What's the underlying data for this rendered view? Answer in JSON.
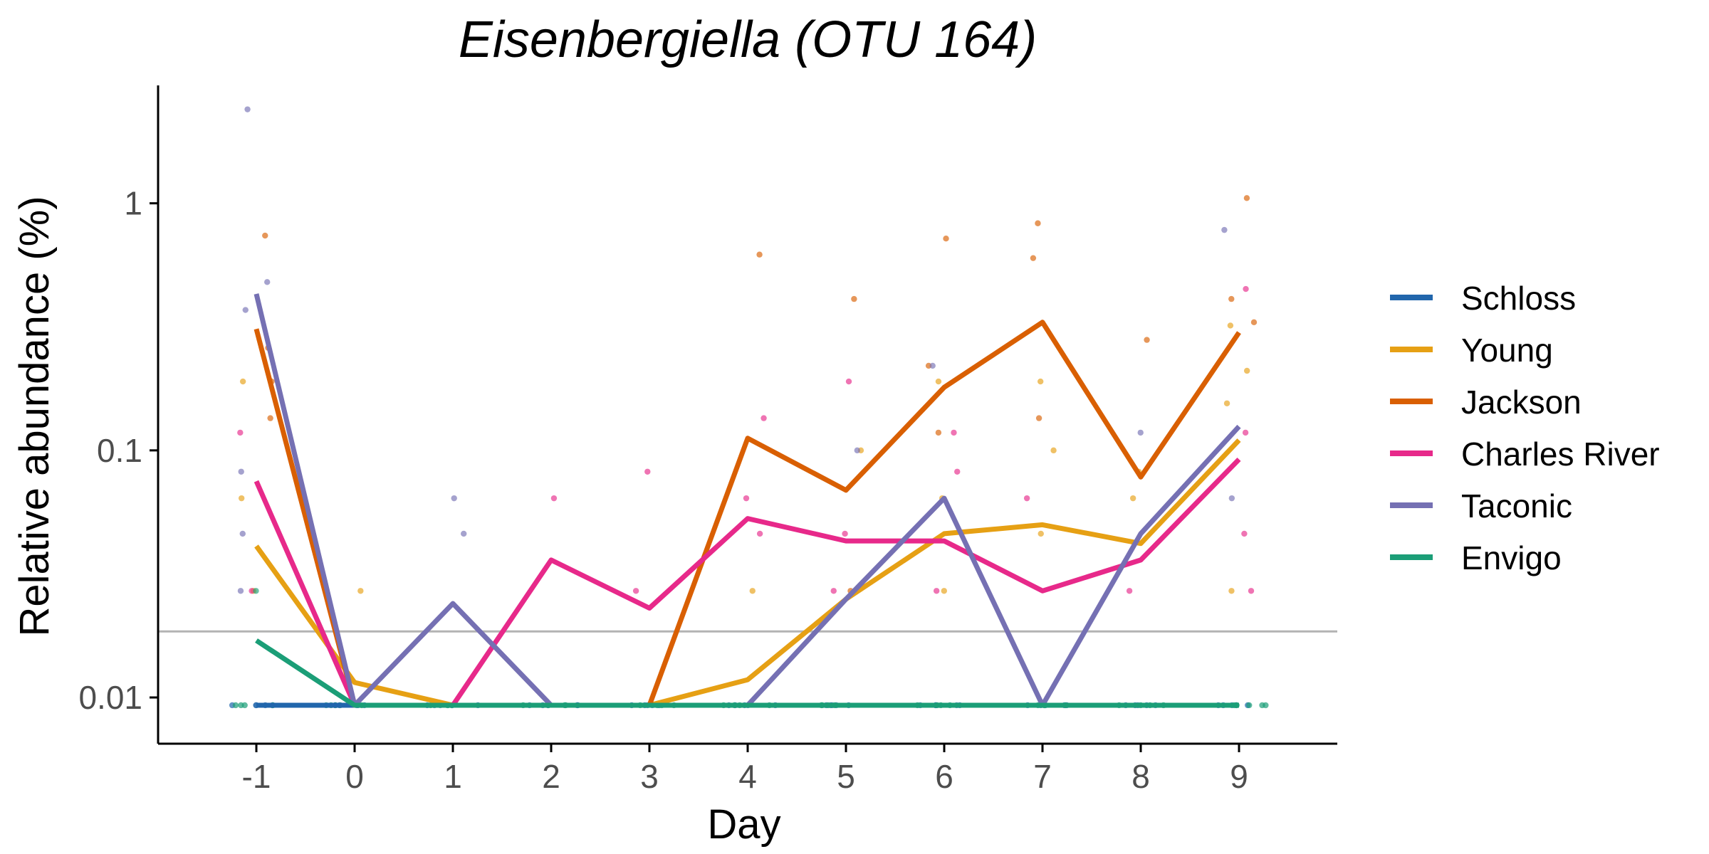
{
  "chart_data": {
    "type": "line",
    "title": "Eisenbergiella (OTU 164)",
    "xlabel": "Day",
    "ylabel": "Relative abundance (%)",
    "x": [
      -1,
      0,
      1,
      2,
      3,
      4,
      5,
      6,
      7,
      8,
      9
    ],
    "x_tick_labels": [
      "-1",
      "0",
      "1",
      "2",
      "3",
      "4",
      "5",
      "6",
      "7",
      "8",
      "9"
    ],
    "xlim": [
      -2,
      10
    ],
    "yscale": "log",
    "ylim": [
      0.0065,
      3.0
    ],
    "y_ticks": [
      0.01,
      0.1,
      1
    ],
    "y_tick_labels": [
      "0.01",
      "0.1",
      "1"
    ],
    "limit_of_detection": 0.0185,
    "grid": false,
    "legend_position": "right",
    "series": [
      {
        "name": "Schloss",
        "color": "#2166ac",
        "values": [
          0.0093,
          0.0093,
          0.0093,
          0.0093,
          0.0093,
          0.0093,
          0.0093,
          0.0093,
          0.0093,
          0.0093,
          0.0093
        ],
        "points": [
          [
            -1,
            0.0093
          ],
          [
            0,
            0.0093
          ],
          [
            1,
            0.0093
          ],
          [
            2,
            0.0093
          ],
          [
            3,
            0.0093
          ],
          [
            4,
            0.0093
          ],
          [
            5,
            0.0093
          ],
          [
            6,
            0.0093
          ],
          [
            7,
            0.0093
          ],
          [
            8,
            0.0093
          ],
          [
            9,
            0.0093
          ]
        ]
      },
      {
        "name": "Young",
        "color": "#e6a014",
        "values": [
          0.041,
          0.0115,
          0.0093,
          0.0093,
          0.0093,
          0.0118,
          0.025,
          0.046,
          0.05,
          0.042,
          0.11
        ],
        "points": [
          [
            -1,
            0.19
          ],
          [
            -1,
            0.064
          ],
          [
            -1,
            0.027
          ],
          [
            0,
            0.027
          ],
          [
            4,
            0.027
          ],
          [
            5,
            0.1
          ],
          [
            6,
            0.19
          ],
          [
            6,
            0.064
          ],
          [
            6,
            0.027
          ],
          [
            7,
            0.19
          ],
          [
            7,
            0.1
          ],
          [
            7,
            0.046
          ],
          [
            8,
            0.082
          ],
          [
            8,
            0.064
          ],
          [
            9,
            0.32
          ],
          [
            9,
            0.21
          ],
          [
            9,
            0.155
          ],
          [
            9,
            0.027
          ]
        ]
      },
      {
        "name": "Jackson",
        "color": "#d95f02",
        "values": [
          0.31,
          0.0093,
          0.0093,
          0.0093,
          0.0093,
          0.112,
          0.069,
          0.18,
          0.33,
          0.078,
          0.3
        ],
        "points": [
          [
            -1,
            0.74
          ],
          [
            -1,
            0.26
          ],
          [
            -1,
            0.19
          ],
          [
            -1,
            0.135
          ],
          [
            4,
            0.62
          ],
          [
            5,
            0.41
          ],
          [
            5,
            0.027
          ],
          [
            6,
            0.72
          ],
          [
            6,
            0.22
          ],
          [
            6,
            0.118
          ],
          [
            7,
            0.83
          ],
          [
            7,
            0.6
          ],
          [
            7,
            0.135
          ],
          [
            8,
            0.28
          ],
          [
            9,
            1.05
          ],
          [
            9,
            0.41
          ],
          [
            9,
            0.33
          ]
        ]
      },
      {
        "name": "Charles River",
        "color": "#e7298a",
        "values": [
          0.075,
          0.0093,
          0.0093,
          0.036,
          0.023,
          0.053,
          0.043,
          0.043,
          0.027,
          0.036,
          0.092
        ],
        "points": [
          [
            -1,
            0.118
          ],
          [
            -1,
            0.027
          ],
          [
            2,
            0.064
          ],
          [
            3,
            0.082
          ],
          [
            3,
            0.027
          ],
          [
            4,
            0.135
          ],
          [
            4,
            0.064
          ],
          [
            4,
            0.046
          ],
          [
            5,
            0.19
          ],
          [
            5,
            0.046
          ],
          [
            5,
            0.027
          ],
          [
            6,
            0.118
          ],
          [
            6,
            0.082
          ],
          [
            6,
            0.027
          ],
          [
            7,
            0.064
          ],
          [
            8,
            0.027
          ],
          [
            9,
            0.45
          ],
          [
            9,
            0.118
          ],
          [
            9,
            0.046
          ],
          [
            9,
            0.027
          ]
        ]
      },
      {
        "name": "Taconic",
        "color": "#7570b3",
        "values": [
          0.43,
          0.0093,
          0.024,
          0.0093,
          0.0093,
          0.0093,
          0.025,
          0.064,
          0.0093,
          0.046,
          0.125
        ],
        "points": [
          [
            -1,
            2.4
          ],
          [
            -1,
            0.48
          ],
          [
            -1,
            0.37
          ],
          [
            -1,
            0.082
          ],
          [
            -1,
            0.046
          ],
          [
            -1,
            0.027
          ],
          [
            1,
            0.064
          ],
          [
            1,
            0.046
          ],
          [
            5,
            0.1
          ],
          [
            6,
            0.22
          ],
          [
            8,
            0.118
          ],
          [
            9,
            0.78
          ],
          [
            9,
            0.064
          ]
        ]
      },
      {
        "name": "Envigo",
        "color": "#1b9e77",
        "values": [
          0.017,
          0.0093,
          0.0093,
          0.0093,
          0.0093,
          0.0093,
          0.0093,
          0.0093,
          0.0093,
          0.0093,
          0.0093
        ],
        "points": [
          [
            -1,
            0.027
          ],
          [
            0,
            0.0093
          ],
          [
            9,
            0.0093
          ]
        ]
      }
    ]
  }
}
